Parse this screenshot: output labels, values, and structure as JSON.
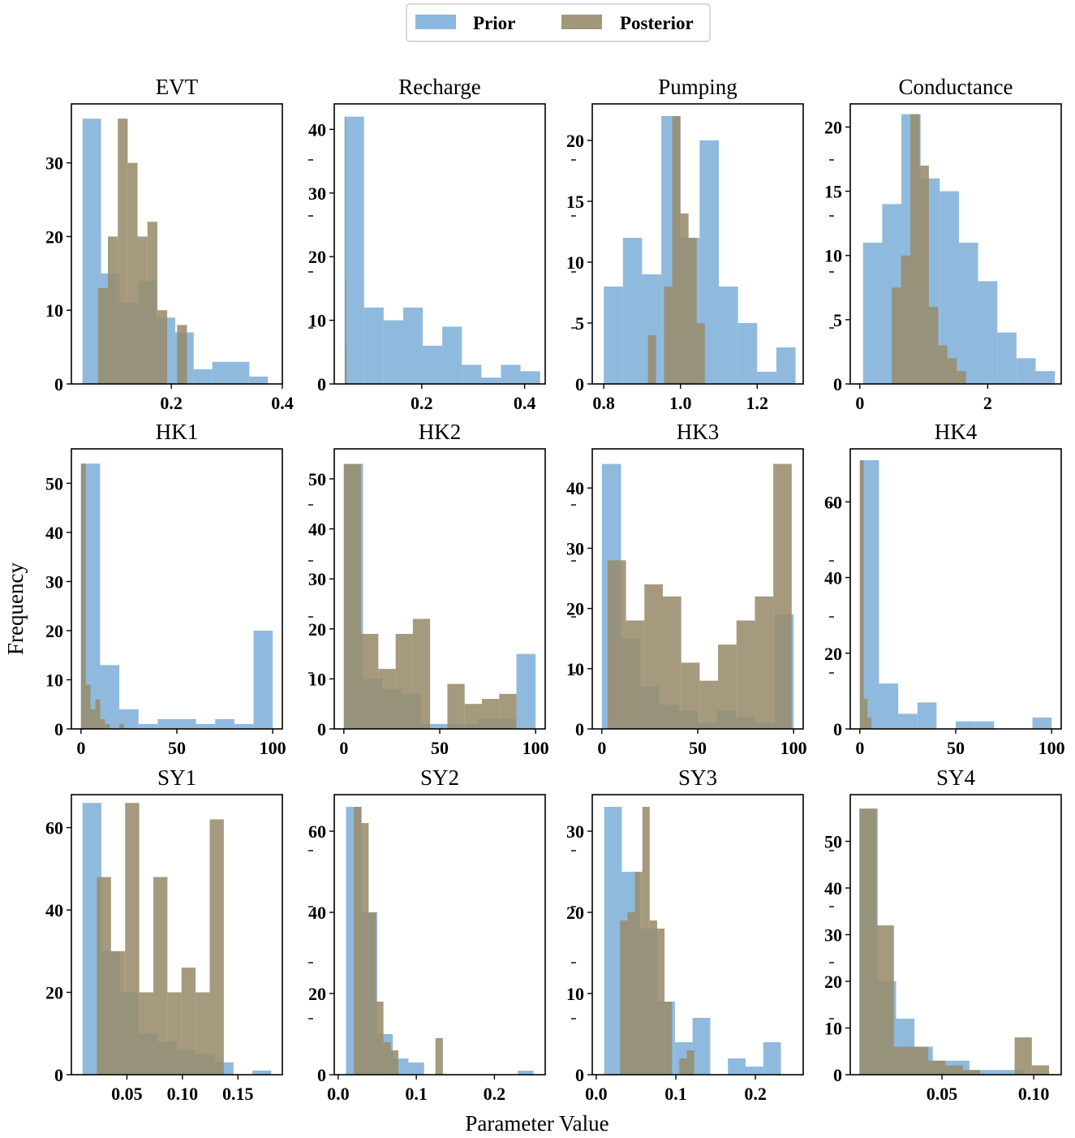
{
  "legend": {
    "prior_label": "Prior",
    "posterior_label": "Posterior",
    "placement": "top-center"
  },
  "axis_labels": {
    "x": "Parameter Value",
    "y": "Frequency"
  },
  "colors": {
    "prior": "#7fb0d9",
    "posterior": "#988c6c",
    "axes": "#000000"
  },
  "chart_data": [
    {
      "type": "bar",
      "title": "EVT",
      "xlim": [
        0.02,
        0.4
      ],
      "ylim": [
        0,
        38
      ],
      "xticks": [
        {
          "v": 0.2,
          "l": "0.2"
        },
        {
          "v": 0.4,
          "l": "0.4"
        }
      ],
      "yticks": [
        {
          "v": 0,
          "l": "0"
        },
        {
          "v": 10,
          "l": "10"
        },
        {
          "v": 20,
          "l": "20"
        },
        {
          "v": 30,
          "l": "30"
        }
      ],
      "prior": {
        "start": 0.04,
        "width": 0.0334,
        "counts": [
          36,
          15,
          11,
          14,
          9,
          7,
          2,
          3,
          3,
          1
        ]
      },
      "posterior": {
        "start": 0.068,
        "width": 0.0178,
        "counts": [
          13,
          20,
          36,
          30,
          20,
          22,
          10,
          0,
          8,
          0
        ]
      }
    },
    {
      "type": "bar",
      "title": "Recharge",
      "xlim": [
        0.03,
        0.44
      ],
      "ylim": [
        0,
        44
      ],
      "xticks": [
        {
          "v": 0.2,
          "l": "0.2"
        },
        {
          "v": 0.4,
          "l": "0.4"
        }
      ],
      "yticks": [
        {
          "v": 0,
          "l": "0"
        },
        {
          "v": 10,
          "l": "10"
        },
        {
          "v": 20,
          "l": "20"
        },
        {
          "v": 30,
          "l": "30"
        },
        {
          "v": 40,
          "l": "40"
        }
      ],
      "prior": {
        "start": 0.05,
        "width": 0.038,
        "counts": [
          42,
          12,
          10,
          12,
          6,
          9,
          3,
          1,
          3,
          2
        ]
      },
      "posterior": {
        "start": 0.051,
        "width": 0.0008,
        "counts": [
          42,
          16,
          6
        ]
      }
    },
    {
      "type": "bar",
      "title": "Pumping",
      "xlim": [
        0.77,
        1.32
      ],
      "ylim": [
        0,
        23
      ],
      "xticks": [
        {
          "v": 0.8,
          "l": "0.8"
        },
        {
          "v": 1.0,
          "l": "1.0"
        },
        {
          "v": 1.2,
          "l": "1.2"
        }
      ],
      "yticks": [
        {
          "v": 0,
          "l": "0"
        },
        {
          "v": 5,
          "l": "5"
        },
        {
          "v": 10,
          "l": "10"
        },
        {
          "v": 15,
          "l": "15"
        },
        {
          "v": 20,
          "l": "20"
        }
      ],
      "prior": {
        "start": 0.8,
        "width": 0.05,
        "counts": [
          8,
          12,
          9,
          22,
          12,
          20,
          8,
          5,
          1,
          3
        ]
      },
      "posterior": {
        "start": 0.915,
        "width": 0.0212,
        "counts": [
          4,
          0,
          8,
          22,
          14,
          12,
          5
        ]
      }
    },
    {
      "type": "bar",
      "title": "Conductance",
      "xlim": [
        -0.15,
        3.15
      ],
      "ylim": [
        0,
        21.8
      ],
      "xticks": [
        {
          "v": 0,
          "l": "0"
        },
        {
          "v": 2,
          "l": "2"
        }
      ],
      "yticks": [
        {
          "v": 0,
          "l": "0"
        },
        {
          "v": 5,
          "l": "5"
        },
        {
          "v": 10,
          "l": "10"
        },
        {
          "v": 15,
          "l": "15"
        },
        {
          "v": 20,
          "l": "20"
        }
      ],
      "prior": {
        "start": 0.05,
        "width": 0.3,
        "counts": [
          11,
          14,
          21,
          16,
          15,
          11,
          8,
          4,
          2,
          1
        ]
      },
      "posterior": {
        "start": 0.5,
        "width": 0.145,
        "counts": [
          7.5,
          10,
          21,
          17,
          6,
          3,
          2,
          1
        ]
      }
    },
    {
      "type": "bar",
      "title": "HK1",
      "xlim": [
        -5,
        105
      ],
      "ylim": [
        0,
        57
      ],
      "xticks": [
        {
          "v": 0,
          "l": "0"
        },
        {
          "v": 50,
          "l": "50"
        },
        {
          "v": 100,
          "l": "100"
        }
      ],
      "yticks": [
        {
          "v": 0,
          "l": "0"
        },
        {
          "v": 10,
          "l": "10"
        },
        {
          "v": 20,
          "l": "20"
        },
        {
          "v": 30,
          "l": "30"
        },
        {
          "v": 40,
          "l": "40"
        },
        {
          "v": 50,
          "l": "50"
        }
      ],
      "prior": {
        "start": 0,
        "width": 10,
        "counts": [
          54,
          13,
          4,
          1,
          2,
          2,
          1,
          2,
          1,
          20
        ]
      },
      "posterior": {
        "start": 0,
        "width": 2.5,
        "counts": [
          54,
          9,
          4,
          6,
          2,
          1,
          0,
          0,
          1
        ]
      }
    },
    {
      "type": "bar",
      "title": "HK2",
      "xlim": [
        -5,
        105
      ],
      "ylim": [
        0,
        56
      ],
      "xticks": [
        {
          "v": 0,
          "l": "0"
        },
        {
          "v": 50,
          "l": "50"
        },
        {
          "v": 100,
          "l": "100"
        }
      ],
      "yticks": [
        {
          "v": 0,
          "l": "0"
        },
        {
          "v": 10,
          "l": "10"
        },
        {
          "v": 20,
          "l": "20"
        },
        {
          "v": 30,
          "l": "30"
        },
        {
          "v": 40,
          "l": "40"
        },
        {
          "v": 50,
          "l": "50"
        }
      ],
      "prior": {
        "start": 0,
        "width": 10,
        "counts": [
          53,
          10,
          8,
          7,
          1,
          1,
          1,
          2,
          2,
          15
        ]
      },
      "posterior": {
        "start": 0,
        "width": 9,
        "counts": [
          53,
          19,
          12,
          19,
          22,
          0,
          9,
          5,
          6,
          7
        ]
      }
    },
    {
      "type": "bar",
      "title": "HK3",
      "xlim": [
        -5,
        105
      ],
      "ylim": [
        0,
        46.5
      ],
      "xticks": [
        {
          "v": 0,
          "l": "0"
        },
        {
          "v": 50,
          "l": "50"
        },
        {
          "v": 100,
          "l": "100"
        }
      ],
      "yticks": [
        {
          "v": 0,
          "l": "0"
        },
        {
          "v": 10,
          "l": "10"
        },
        {
          "v": 20,
          "l": "20"
        },
        {
          "v": 30,
          "l": "30"
        },
        {
          "v": 40,
          "l": "40"
        }
      ],
      "prior": {
        "start": 0,
        "width": 10,
        "counts": [
          44,
          15,
          7,
          4,
          3,
          1,
          3,
          2,
          1,
          19
        ]
      },
      "posterior": {
        "start": 3,
        "width": 9.6,
        "counts": [
          28,
          18,
          24,
          22,
          11,
          8,
          14,
          18,
          22,
          44
        ]
      }
    },
    {
      "type": "bar",
      "title": "HK4",
      "xlim": [
        -5,
        105
      ],
      "ylim": [
        0,
        74
      ],
      "xticks": [
        {
          "v": 0,
          "l": "0"
        },
        {
          "v": 50,
          "l": "50"
        },
        {
          "v": 100,
          "l": "100"
        }
      ],
      "yticks": [
        {
          "v": 0,
          "l": "0"
        },
        {
          "v": 20,
          "l": "20"
        },
        {
          "v": 40,
          "l": "40"
        },
        {
          "v": 60,
          "l": "60"
        }
      ],
      "prior": {
        "start": 0,
        "width": 10,
        "counts": [
          71,
          12,
          4,
          7,
          0,
          2,
          2,
          0,
          0,
          3
        ]
      },
      "posterior": {
        "start": 0,
        "width": 2,
        "counts": [
          71,
          8,
          3,
          0,
          0
        ]
      }
    },
    {
      "type": "bar",
      "title": "SY1",
      "xlim": [
        0,
        0.19
      ],
      "ylim": [
        0,
        68
      ],
      "xticks": [
        {
          "v": 0.05,
          "l": "0.05"
        },
        {
          "v": 0.1,
          "l": "0.10"
        },
        {
          "v": 0.15,
          "l": "0.15"
        }
      ],
      "yticks": [
        {
          "v": 0,
          "l": "0"
        },
        {
          "v": 20,
          "l": "20"
        },
        {
          "v": 40,
          "l": "40"
        },
        {
          "v": 60,
          "l": "60"
        }
      ],
      "prior": {
        "start": 0.01,
        "width": 0.017,
        "counts": [
          66,
          30,
          20,
          10,
          8,
          6,
          5,
          3,
          0,
          1
        ]
      },
      "posterior": {
        "start": 0.023,
        "width": 0.0127,
        "counts": [
          48,
          30,
          66,
          20,
          48,
          20,
          26,
          20,
          62
        ]
      }
    },
    {
      "type": "bar",
      "title": "SY2",
      "xlim": [
        -0.005,
        0.265
      ],
      "ylim": [
        0,
        69
      ],
      "xticks": [
        {
          "v": 0,
          "l": "0.0"
        },
        {
          "v": 0.1,
          "l": "0.1"
        },
        {
          "v": 0.2,
          "l": "0.2"
        }
      ],
      "yticks": [
        {
          "v": 0,
          "l": "0"
        },
        {
          "v": 20,
          "l": "20"
        },
        {
          "v": 40,
          "l": "40"
        },
        {
          "v": 60,
          "l": "60"
        }
      ],
      "prior": {
        "start": 0.01,
        "width": 0.02,
        "counts": [
          66,
          40,
          10,
          4,
          3,
          0,
          0,
          0,
          0,
          0,
          0,
          1
        ]
      },
      "posterior": {
        "start": 0.02,
        "width": 0.0095,
        "counts": [
          66,
          62,
          40,
          18,
          8,
          6,
          0,
          0,
          0,
          0,
          0,
          9
        ]
      }
    },
    {
      "type": "bar",
      "title": "SY3",
      "xlim": [
        -0.005,
        0.26
      ],
      "ylim": [
        0,
        34.5
      ],
      "xticks": [
        {
          "v": 0,
          "l": "0.0"
        },
        {
          "v": 0.1,
          "l": "0.1"
        },
        {
          "v": 0.2,
          "l": "0.2"
        }
      ],
      "yticks": [
        {
          "v": 0,
          "l": "0"
        },
        {
          "v": 10,
          "l": "10"
        },
        {
          "v": 20,
          "l": "20"
        },
        {
          "v": 30,
          "l": "30"
        }
      ],
      "prior": {
        "start": 0.01,
        "width": 0.0222,
        "counts": [
          33,
          25,
          18,
          9,
          4,
          7,
          0,
          2,
          1,
          4
        ]
      },
      "posterior": {
        "start": 0.03,
        "width": 0.0093,
        "counts": [
          19,
          20,
          25,
          33,
          19,
          18,
          9,
          0,
          2,
          3
        ]
      }
    },
    {
      "type": "bar",
      "title": "SY4",
      "xlim": [
        0,
        0.115
      ],
      "ylim": [
        0,
        60
      ],
      "xticks": [
        {
          "v": 0.05,
          "l": "0.05"
        },
        {
          "v": 0.1,
          "l": "0.10"
        }
      ],
      "yticks": [
        {
          "v": 0,
          "l": "0"
        },
        {
          "v": 10,
          "l": "10"
        },
        {
          "v": 20,
          "l": "20"
        },
        {
          "v": 30,
          "l": "30"
        },
        {
          "v": 40,
          "l": "40"
        },
        {
          "v": 50,
          "l": "50"
        }
      ],
      "prior": {
        "start": 0.005,
        "width": 0.01,
        "counts": [
          57,
          20,
          12,
          6,
          3,
          3,
          1,
          1,
          1,
          0
        ]
      },
      "posterior": {
        "start": 0.005,
        "width": 0.0094,
        "counts": [
          57,
          32,
          6,
          6,
          3,
          2,
          1,
          0,
          0,
          8,
          2
        ]
      }
    }
  ]
}
